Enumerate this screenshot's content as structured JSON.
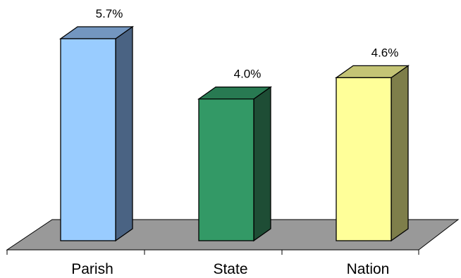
{
  "chart_data": {
    "type": "bar",
    "categories": [
      "Parish",
      "State",
      "Nation"
    ],
    "values": [
      5.7,
      4.0,
      4.6
    ],
    "data_labels": [
      "5.7%",
      "4.0%",
      "4.6%"
    ],
    "colors": [
      {
        "front": "#99ccff",
        "side": "#4a6383",
        "top": "#7396c0"
      },
      {
        "front": "#339966",
        "side": "#1e4d35",
        "top": "#287a52"
      },
      {
        "front": "#ffff99",
        "side": "#7e7e4a",
        "top": "#c4c475"
      }
    ],
    "floor_color": "#999999",
    "title": "",
    "xlabel": "",
    "ylabel": "",
    "grid": false,
    "legend": false
  }
}
